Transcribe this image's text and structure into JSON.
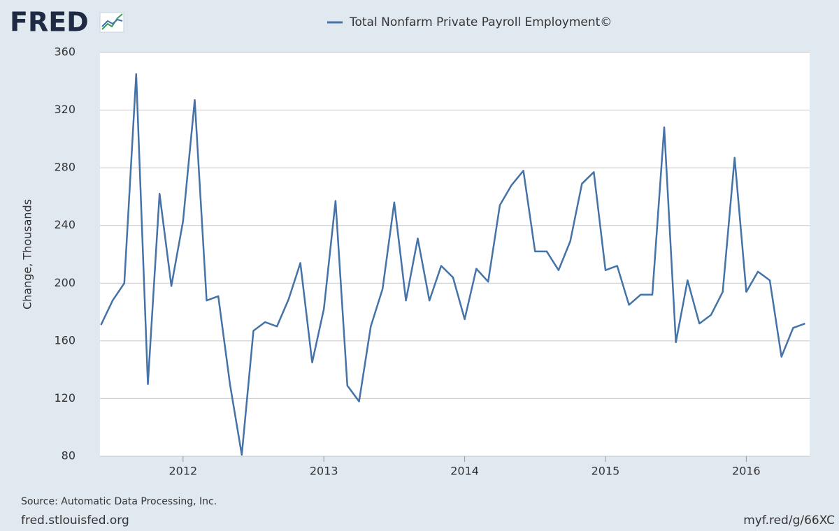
{
  "logo": "FRED",
  "chart_data": {
    "type": "line",
    "y_label": "Change, Thousands",
    "source": "Source: Automatic Data Processing, Inc.",
    "site": "fred.stlouisfed.org",
    "short_link": "myf.red/g/66XC",
    "x": [
      2011.417,
      2011.5,
      2011.583,
      2011.667,
      2011.75,
      2011.833,
      2011.917,
      2012.0,
      2012.083,
      2012.167,
      2012.25,
      2012.333,
      2012.417,
      2012.5,
      2012.583,
      2012.667,
      2012.75,
      2012.833,
      2012.917,
      2013.0,
      2013.083,
      2013.167,
      2013.25,
      2013.333,
      2013.417,
      2013.5,
      2013.583,
      2013.667,
      2013.75,
      2013.833,
      2013.917,
      2014.0,
      2014.083,
      2014.167,
      2014.25,
      2014.333,
      2014.417,
      2014.5,
      2014.583,
      2014.667,
      2014.75,
      2014.833,
      2014.917,
      2015.0,
      2015.083,
      2015.167,
      2015.25,
      2015.333,
      2015.417,
      2015.5,
      2015.583,
      2015.667,
      2015.75,
      2015.833,
      2015.917,
      2016.0,
      2016.083,
      2016.167,
      2016.25,
      2016.333,
      2016.417
    ],
    "series": [
      {
        "name": "Total Nonfarm Private Payroll Employment©",
        "color": "#4572a7",
        "values": [
          171,
          188,
          200,
          345,
          130,
          262,
          198,
          243,
          327,
          188,
          191,
          130,
          81,
          167,
          173,
          170,
          189,
          214,
          145,
          182,
          257,
          129,
          118,
          170,
          196,
          256,
          188,
          231,
          188,
          212,
          204,
          175,
          210,
          201,
          254,
          268,
          278,
          222,
          222,
          209,
          229,
          269,
          277,
          209,
          212,
          185,
          192,
          192,
          308,
          159,
          202,
          172,
          178,
          194,
          287,
          194,
          208,
          202,
          149,
          169,
          172
        ]
      }
    ],
    "xlim": [
      2011.41,
      2016.45
    ],
    "xticks": [
      2012,
      2013,
      2014,
      2015,
      2016
    ],
    "ylim": [
      80,
      360
    ],
    "yticks": [
      80,
      120,
      160,
      200,
      240,
      280,
      320,
      360
    ],
    "grid": true
  }
}
